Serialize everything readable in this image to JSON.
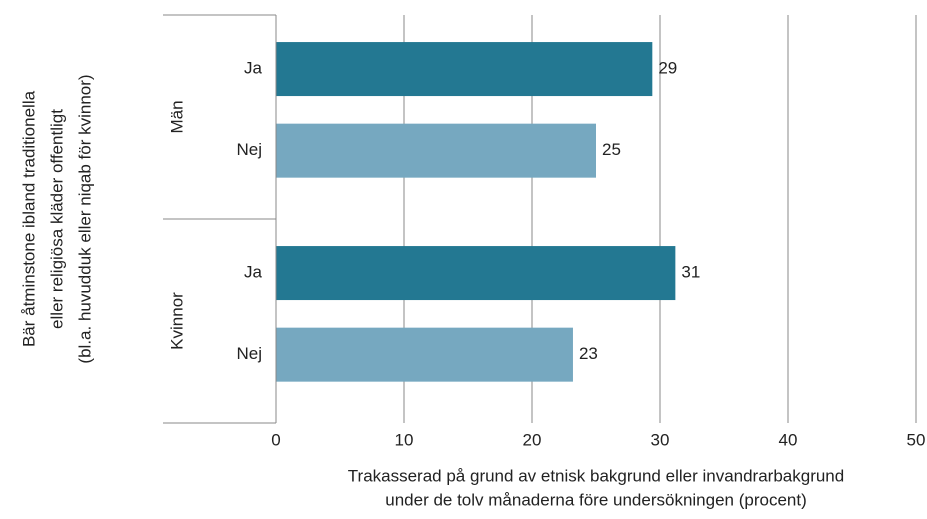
{
  "chart_data": {
    "type": "grouped-hbar",
    "ylabel": [
      "Bär åtminstone ibland traditionella",
      "eller religiösa kläder offentligt",
      "(bl.a. huvudduk eller niqab för kvinnor)"
    ],
    "xlabel": [
      "Trakasserad på grund av etnisk bakgrund eller invandrarbakgrund",
      "under de tolv månaderna före undersökningen (procent)"
    ],
    "groups": [
      {
        "name": "Män",
        "categories": [
          "Ja",
          "Nej"
        ],
        "values": [
          29.4,
          25
        ],
        "value_labels": [
          "29",
          "25"
        ]
      },
      {
        "name": "Kvinnor",
        "categories": [
          "Ja",
          "Nej"
        ],
        "values": [
          31.2,
          23.2
        ],
        "value_labels": [
          "31",
          "23"
        ]
      }
    ],
    "category_colors": [
      "#237892",
      "#76a8c0"
    ],
    "xlim": [
      0,
      50
    ],
    "xticks": [
      0,
      10,
      20,
      30,
      40,
      50
    ],
    "grid": true
  }
}
